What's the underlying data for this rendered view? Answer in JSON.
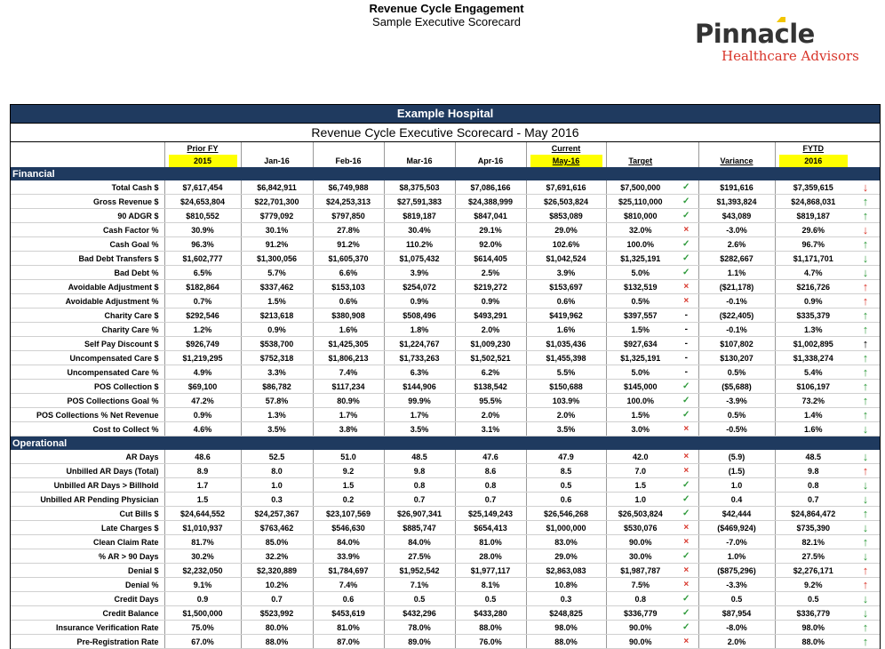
{
  "header": {
    "title": "Revenue Cycle Engagement",
    "subtitle": "Sample Executive Scorecard"
  },
  "logo": {
    "line1": "Pinnacle",
    "line2": "Healthcare Advisors"
  },
  "scorecard": {
    "hospital": "Example Hospital",
    "title": "Revenue Cycle Executive Scorecard - May 2016",
    "columns": {
      "prior_top": "Prior FY",
      "prior": "2015",
      "jan": "Jan-16",
      "feb": "Feb-16",
      "mar": "Mar-16",
      "apr": "Apr-16",
      "current_top": "Current",
      "current": "May-16",
      "target": "Target",
      "variance": "Variance",
      "fytd_top": "FYTD",
      "fytd": "2016"
    },
    "colors": {
      "header_bg": "#1f3a5f",
      "highlight": "#ffff00",
      "good": "#2e9a3b",
      "bad": "#d8352a"
    },
    "sections": [
      {
        "name": "Financial",
        "rows": [
          {
            "label": "Total Cash $",
            "prior": "$7,617,454",
            "jan": "$6,842,911",
            "feb": "$6,749,988",
            "mar": "$8,375,503",
            "apr": "$7,086,166",
            "current": "$7,691,616",
            "target": "$7,500,000",
            "status": "check",
            "variance": "$191,616",
            "fytd": "$7,359,615",
            "trend": "down-red"
          },
          {
            "label": "Gross Revenue $",
            "prior": "$24,653,804",
            "jan": "$22,701,300",
            "feb": "$24,253,313",
            "mar": "$27,591,383",
            "apr": "$24,388,999",
            "current": "$26,503,824",
            "target": "$25,110,000",
            "status": "check",
            "variance": "$1,393,824",
            "fytd": "$24,868,031",
            "trend": "up-green"
          },
          {
            "label": "90 ADGR $",
            "prior": "$810,552",
            "jan": "$779,092",
            "feb": "$797,850",
            "mar": "$819,187",
            "apr": "$847,041",
            "current": "$853,089",
            "target": "$810,000",
            "status": "check",
            "variance": "$43,089",
            "fytd": "$819,187",
            "trend": "up-green"
          },
          {
            "label": "Cash Factor %",
            "prior": "30.9%",
            "jan": "30.1%",
            "feb": "27.8%",
            "mar": "30.4%",
            "apr": "29.1%",
            "current": "29.0%",
            "target": "32.0%",
            "status": "x",
            "variance": "-3.0%",
            "fytd": "29.6%",
            "trend": "down-red"
          },
          {
            "label": "Cash Goal %",
            "prior": "96.3%",
            "jan": "91.2%",
            "feb": "91.2%",
            "mar": "110.2%",
            "apr": "92.0%",
            "current": "102.6%",
            "target": "100.0%",
            "status": "check",
            "variance": "2.6%",
            "fytd": "96.7%",
            "trend": "up-green"
          },
          {
            "label": "Bad Debt Transfers $",
            "prior": "$1,602,777",
            "jan": "$1,300,056",
            "feb": "$1,605,370",
            "mar": "$1,075,432",
            "apr": "$614,405",
            "current": "$1,042,524",
            "target": "$1,325,191",
            "status": "check",
            "variance": "$282,667",
            "fytd": "$1,171,701",
            "trend": "down-green"
          },
          {
            "label": "Bad Debt %",
            "prior": "6.5%",
            "jan": "5.7%",
            "feb": "6.6%",
            "mar": "3.9%",
            "apr": "2.5%",
            "current": "3.9%",
            "target": "5.0%",
            "status": "check",
            "variance": "1.1%",
            "fytd": "4.7%",
            "trend": "down-green"
          },
          {
            "label": "Avoidable Adjustment $",
            "prior": "$182,864",
            "jan": "$337,462",
            "feb": "$153,103",
            "mar": "$254,072",
            "apr": "$219,272",
            "current": "$153,697",
            "target": "$132,519",
            "status": "x",
            "variance": "($21,178)",
            "fytd": "$216,726",
            "trend": "up-red"
          },
          {
            "label": "Avoidable Adjustment %",
            "prior": "0.7%",
            "jan": "1.5%",
            "feb": "0.6%",
            "mar": "0.9%",
            "apr": "0.9%",
            "current": "0.6%",
            "target": "0.5%",
            "status": "x",
            "variance": "-0.1%",
            "fytd": "0.9%",
            "trend": "up-red"
          },
          {
            "label": "Charity Care $",
            "prior": "$292,546",
            "jan": "$213,618",
            "feb": "$380,908",
            "mar": "$508,496",
            "apr": "$493,291",
            "current": "$419,962",
            "target": "$397,557",
            "status": "dash",
            "variance": "($22,405)",
            "fytd": "$335,379",
            "trend": "up-green"
          },
          {
            "label": "Charity Care %",
            "prior": "1.2%",
            "jan": "0.9%",
            "feb": "1.6%",
            "mar": "1.8%",
            "apr": "2.0%",
            "current": "1.6%",
            "target": "1.5%",
            "status": "dash",
            "variance": "-0.1%",
            "fytd": "1.3%",
            "trend": "up-green"
          },
          {
            "label": "Self Pay Discount $",
            "prior": "$926,749",
            "jan": "$538,700",
            "feb": "$1,425,305",
            "mar": "$1,224,767",
            "apr": "$1,009,230",
            "current": "$1,035,436",
            "target": "$927,634",
            "status": "dash",
            "variance": "$107,802",
            "fytd": "$1,002,895",
            "trend": "up-black"
          },
          {
            "label": "Uncompensated Care $",
            "prior": "$1,219,295",
            "jan": "$752,318",
            "feb": "$1,806,213",
            "mar": "$1,733,263",
            "apr": "$1,502,521",
            "current": "$1,455,398",
            "target": "$1,325,191",
            "status": "dash",
            "variance": "$130,207",
            "fytd": "$1,338,274",
            "trend": "up-green"
          },
          {
            "label": "Uncompensated Care %",
            "prior": "4.9%",
            "jan": "3.3%",
            "feb": "7.4%",
            "mar": "6.3%",
            "apr": "6.2%",
            "current": "5.5%",
            "target": "5.0%",
            "status": "dash",
            "variance": "0.5%",
            "fytd": "5.4%",
            "trend": "up-green"
          },
          {
            "label": "POS Collection $",
            "prior": "$69,100",
            "jan": "$86,782",
            "feb": "$117,234",
            "mar": "$144,906",
            "apr": "$138,542",
            "current": "$150,688",
            "target": "$145,000",
            "status": "check",
            "variance": "($5,688)",
            "fytd": "$106,197",
            "trend": "up-green"
          },
          {
            "label": "POS Collections Goal %",
            "prior": "47.2%",
            "jan": "57.8%",
            "feb": "80.9%",
            "mar": "99.9%",
            "apr": "95.5%",
            "current": "103.9%",
            "target": "100.0%",
            "status": "check",
            "variance": "-3.9%",
            "fytd": "73.2%",
            "trend": "up-green"
          },
          {
            "label": "POS Collections % Net Revenue",
            "prior": "0.9%",
            "jan": "1.3%",
            "feb": "1.7%",
            "mar": "1.7%",
            "apr": "2.0%",
            "current": "2.0%",
            "target": "1.5%",
            "status": "check",
            "variance": "0.5%",
            "fytd": "1.4%",
            "trend": "up-green"
          },
          {
            "label": "Cost to Collect %",
            "prior": "4.6%",
            "jan": "3.5%",
            "feb": "3.8%",
            "mar": "3.5%",
            "apr": "3.1%",
            "current": "3.5%",
            "target": "3.0%",
            "status": "x",
            "variance": "-0.5%",
            "fytd": "1.6%",
            "trend": "down-green"
          }
        ]
      },
      {
        "name": "Operational",
        "rows": [
          {
            "label": "AR Days",
            "prior": "48.6",
            "jan": "52.5",
            "feb": "51.0",
            "mar": "48.5",
            "apr": "47.6",
            "current": "47.9",
            "target": "42.0",
            "status": "x",
            "variance": "(5.9)",
            "fytd": "48.5",
            "trend": "down-green"
          },
          {
            "label": "Unbilled AR Days (Total)",
            "prior": "8.9",
            "jan": "8.0",
            "feb": "9.2",
            "mar": "9.8",
            "apr": "8.6",
            "current": "8.5",
            "target": "7.0",
            "status": "x",
            "variance": "(1.5)",
            "fytd": "9.8",
            "trend": "up-red"
          },
          {
            "label": "Unbilled AR Days > Billhold",
            "prior": "1.7",
            "jan": "1.0",
            "feb": "1.5",
            "mar": "0.8",
            "apr": "0.8",
            "current": "0.5",
            "target": "1.5",
            "status": "check",
            "variance": "1.0",
            "fytd": "0.8",
            "trend": "down-green"
          },
          {
            "label": "Unbilled AR Pending Physician",
            "prior": "1.5",
            "jan": "0.3",
            "feb": "0.2",
            "mar": "0.7",
            "apr": "0.7",
            "current": "0.6",
            "target": "1.0",
            "status": "check",
            "variance": "0.4",
            "fytd": "0.7",
            "trend": "down-green"
          },
          {
            "label": "Cut Bills $",
            "prior": "$24,644,552",
            "jan": "$24,257,367",
            "feb": "$23,107,569",
            "mar": "$26,907,341",
            "apr": "$25,149,243",
            "current": "$26,546,268",
            "target": "$26,503,824",
            "status": "check",
            "variance": "$42,444",
            "fytd": "$24,864,472",
            "trend": "up-green"
          },
          {
            "label": "Late Charges $",
            "prior": "$1,010,937",
            "jan": "$763,462",
            "feb": "$546,630",
            "mar": "$885,747",
            "apr": "$654,413",
            "current": "$1,000,000",
            "target": "$530,076",
            "status": "x",
            "variance": "($469,924)",
            "fytd": "$735,390",
            "trend": "down-green"
          },
          {
            "label": "Clean Claim Rate",
            "prior": "81.7%",
            "jan": "85.0%",
            "feb": "84.0%",
            "mar": "84.0%",
            "apr": "81.0%",
            "current": "83.0%",
            "target": "90.0%",
            "status": "x",
            "variance": "-7.0%",
            "fytd": "82.1%",
            "trend": "up-green"
          },
          {
            "label": "% AR > 90 Days",
            "prior": "30.2%",
            "jan": "32.2%",
            "feb": "33.9%",
            "mar": "27.5%",
            "apr": "28.0%",
            "current": "29.0%",
            "target": "30.0%",
            "status": "check",
            "variance": "1.0%",
            "fytd": "27.5%",
            "trend": "down-green"
          },
          {
            "label": "Denial $",
            "prior": "$2,232,050",
            "jan": "$2,320,889",
            "feb": "$1,784,697",
            "mar": "$1,952,542",
            "apr": "$1,977,117",
            "current": "$2,863,083",
            "target": "$1,987,787",
            "status": "x",
            "variance": "($875,296)",
            "fytd": "$2,276,171",
            "trend": "up-red"
          },
          {
            "label": "Denial %",
            "prior": "9.1%",
            "jan": "10.2%",
            "feb": "7.4%",
            "mar": "7.1%",
            "apr": "8.1%",
            "current": "10.8%",
            "target": "7.5%",
            "status": "x",
            "variance": "-3.3%",
            "fytd": "9.2%",
            "trend": "up-red"
          },
          {
            "label": "Credit Days",
            "prior": "0.9",
            "jan": "0.7",
            "feb": "0.6",
            "mar": "0.5",
            "apr": "0.5",
            "current": "0.3",
            "target": "0.8",
            "status": "check",
            "variance": "0.5",
            "fytd": "0.5",
            "trend": "down-green"
          },
          {
            "label": "Credit Balance",
            "prior": "$1,500,000",
            "jan": "$523,992",
            "feb": "$453,619",
            "mar": "$432,296",
            "apr": "$433,280",
            "current": "$248,825",
            "target": "$336,779",
            "status": "check",
            "variance": "$87,954",
            "fytd": "$336,779",
            "trend": "down-green"
          },
          {
            "label": "Insurance Verification Rate",
            "prior": "75.0%",
            "jan": "80.0%",
            "feb": "81.0%",
            "mar": "78.0%",
            "apr": "88.0%",
            "current": "98.0%",
            "target": "90.0%",
            "status": "check",
            "variance": "-8.0%",
            "fytd": "98.0%",
            "trend": "up-green"
          },
          {
            "label": "Pre-Registration Rate",
            "prior": "67.0%",
            "jan": "88.0%",
            "feb": "87.0%",
            "mar": "89.0%",
            "apr": "76.0%",
            "current": "88.0%",
            "target": "90.0%",
            "status": "x",
            "variance": "2.0%",
            "fytd": "88.0%",
            "trend": "up-green"
          }
        ]
      }
    ]
  }
}
